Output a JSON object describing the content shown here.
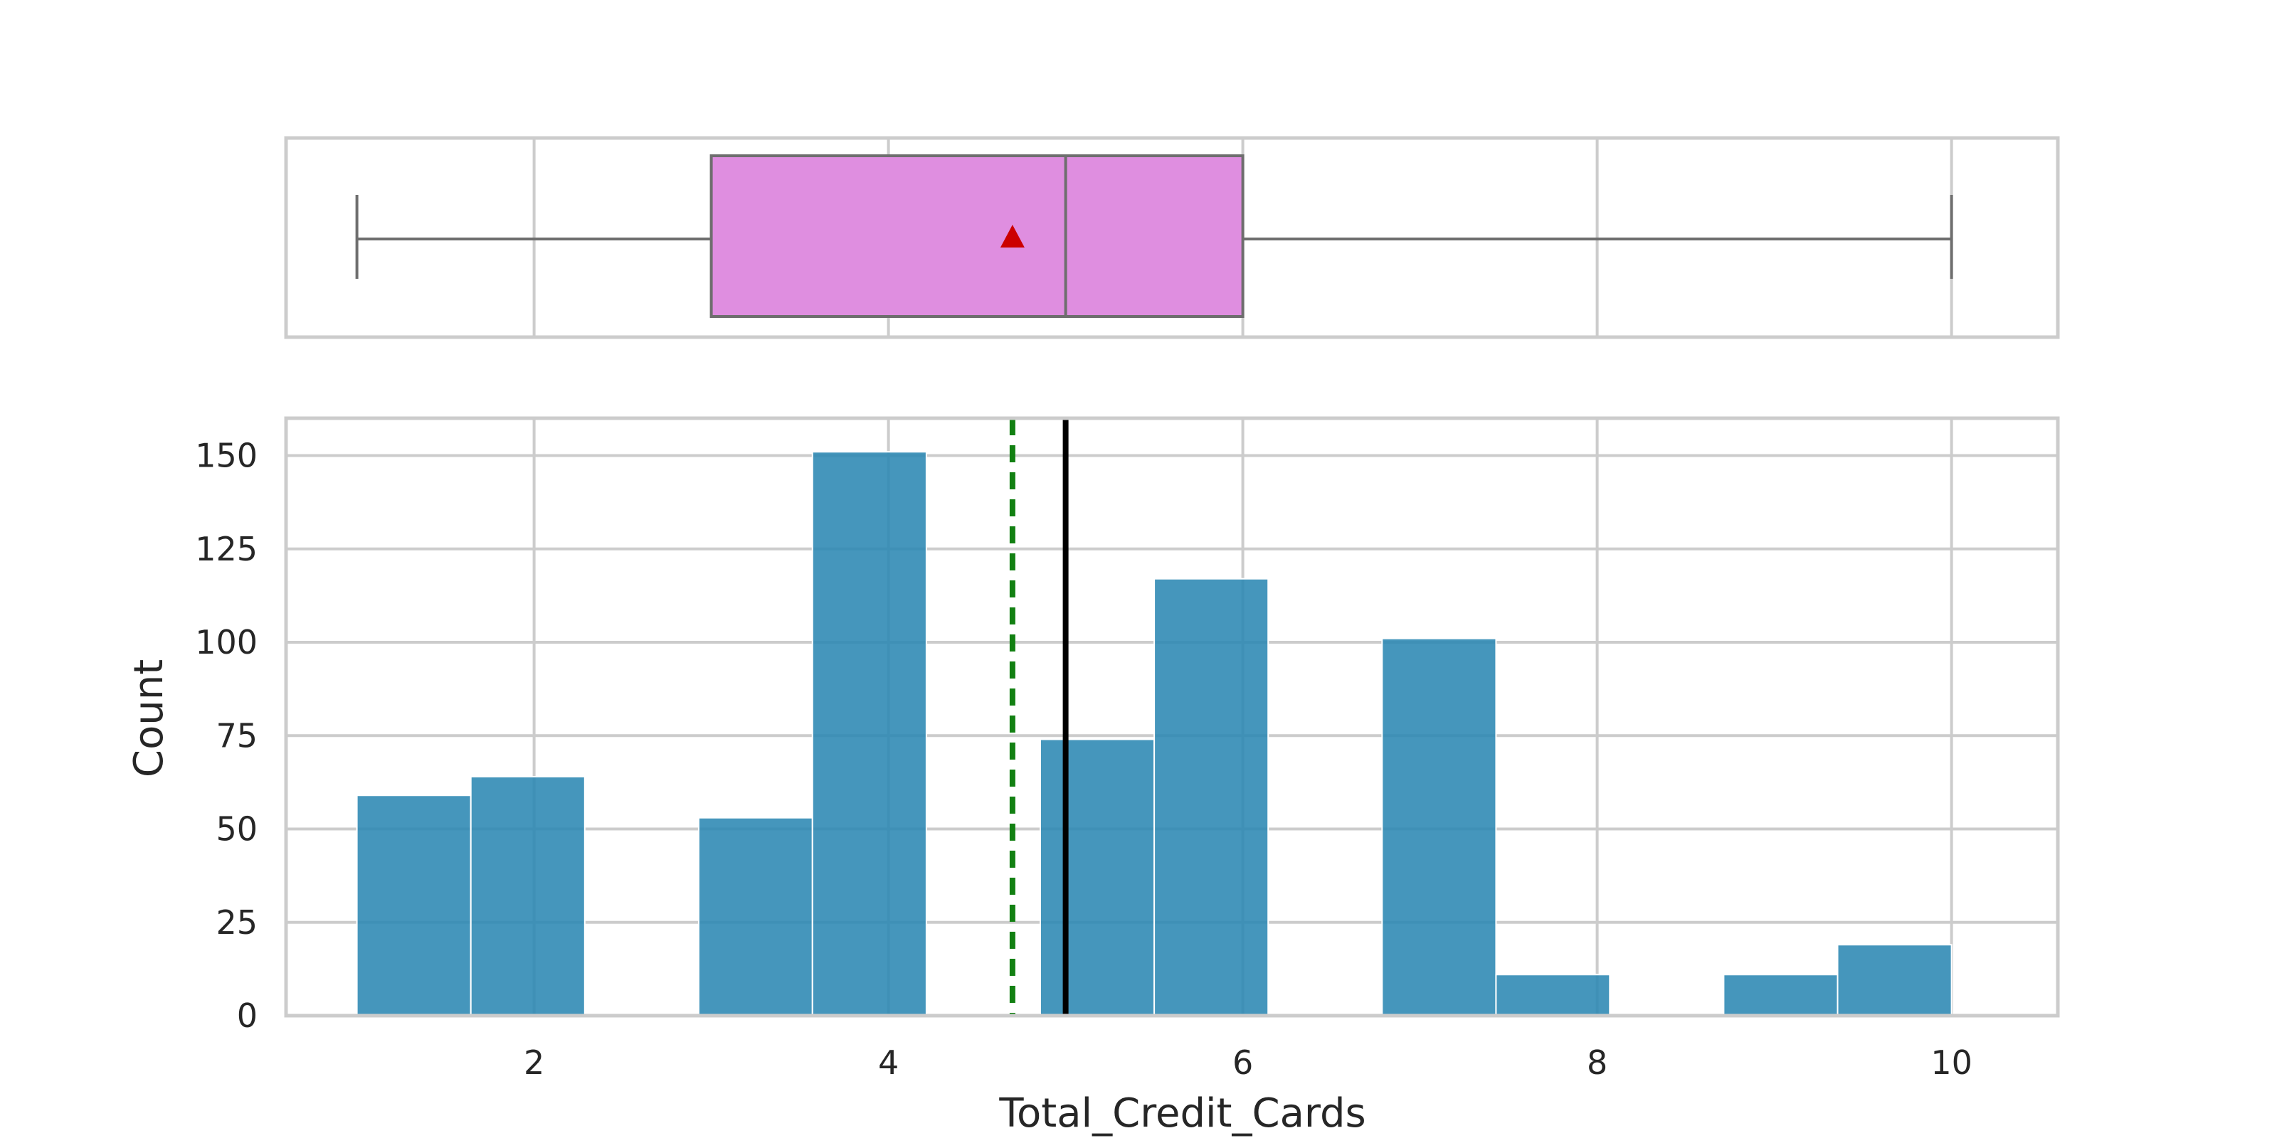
{
  "chart_data": [
    {
      "type": "box",
      "variable": "Total_Credit_Cards",
      "min": 1,
      "q1": 3,
      "median": 5,
      "q3": 6,
      "max": 10,
      "mean": 4.7,
      "xlim": [
        0.6,
        10.6
      ],
      "box_color": "#df8ee0",
      "mean_marker_color": "#cc0000",
      "grid": true
    },
    {
      "type": "bar",
      "xlabel": "Total_Credit_Cards",
      "ylabel": "Count",
      "xlim": [
        0.6,
        10.6
      ],
      "ylim": [
        0,
        160
      ],
      "x_ticks": [
        2,
        4,
        6,
        8,
        10
      ],
      "y_ticks": [
        0,
        25,
        50,
        75,
        100,
        125,
        150
      ],
      "bins": [
        {
          "x0": 1.0,
          "x1": 1.643,
          "count": 59
        },
        {
          "x0": 1.643,
          "x1": 2.286,
          "count": 64
        },
        {
          "x0": 2.929,
          "x1": 3.571,
          "count": 53
        },
        {
          "x0": 3.571,
          "x1": 4.214,
          "count": 151
        },
        {
          "x0": 4.857,
          "x1": 5.5,
          "count": 74
        },
        {
          "x0": 5.5,
          "x1": 6.143,
          "count": 117
        },
        {
          "x0": 6.786,
          "x1": 7.429,
          "count": 101
        },
        {
          "x0": 7.429,
          "x1": 8.071,
          "count": 11
        },
        {
          "x0": 8.714,
          "x1": 9.357,
          "count": 11
        },
        {
          "x0": 9.357,
          "x1": 10.0,
          "count": 19
        }
      ],
      "mean_line": 4.7,
      "median_line": 5,
      "bar_color": "#2b87b3",
      "mean_line_color": "#128012",
      "median_line_color": "#000000",
      "grid": true
    }
  ]
}
